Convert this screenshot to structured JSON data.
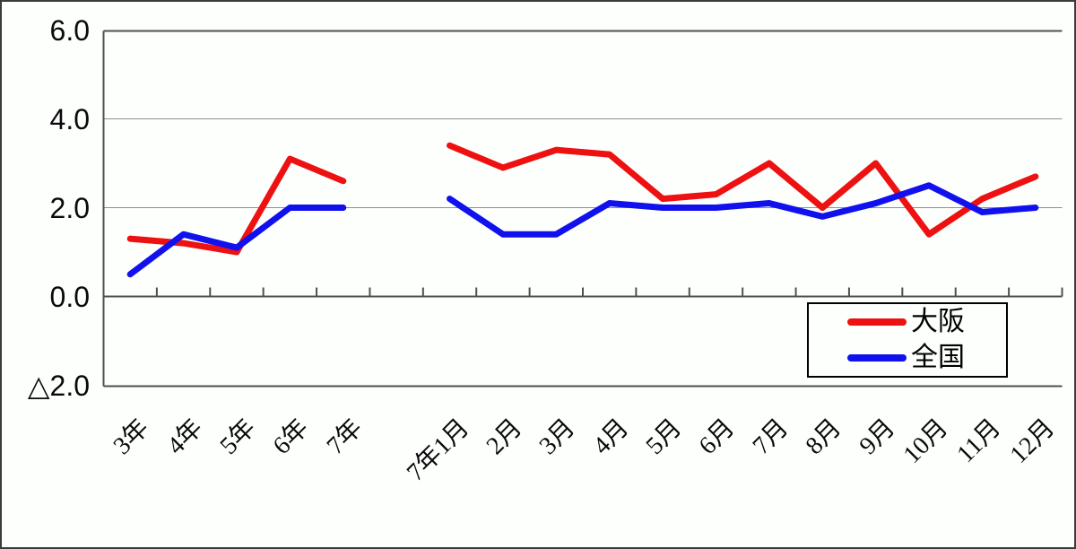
{
  "chart_data": {
    "type": "line",
    "title": "",
    "categories": [
      "3年",
      "4年",
      "5年",
      "6年",
      "7年",
      "",
      "7年1月",
      "2月",
      "3月",
      "4月",
      "5月",
      "6月",
      "7月",
      "8月",
      "9月",
      "10月",
      "11月",
      "12月"
    ],
    "series": [
      {
        "key": "osaka",
        "name": "大阪",
        "color": "#ee1111",
        "values": [
          1.3,
          1.2,
          1.0,
          3.1,
          2.6,
          null,
          3.4,
          2.9,
          3.3,
          3.2,
          2.2,
          2.3,
          3.0,
          2.0,
          3.0,
          1.4,
          2.2,
          2.7
        ]
      },
      {
        "key": "national",
        "name": "全国",
        "color": "#1111ee",
        "values": [
          0.5,
          1.4,
          1.1,
          2.0,
          2.0,
          null,
          2.2,
          1.4,
          1.4,
          2.1,
          2.0,
          2.0,
          2.1,
          1.8,
          2.1,
          2.5,
          1.9,
          2.0
        ]
      }
    ],
    "y_ticks": [
      {
        "label": "6.0",
        "value": 6
      },
      {
        "label": "4.0",
        "value": 4
      },
      {
        "label": "2.0",
        "value": 2
      },
      {
        "label": "0.0",
        "value": 0
      },
      {
        "label": "△2.0",
        "value": -2
      }
    ],
    "ylim": [
      -2,
      6
    ],
    "gridline_values": [
      2,
      4
    ],
    "gap_category_index": 5,
    "negative_prefix": "△",
    "grid_on": true,
    "legend_position": "inside-right",
    "axis_color": "#4f4f4f",
    "grid_color": "#8f8f8f"
  }
}
